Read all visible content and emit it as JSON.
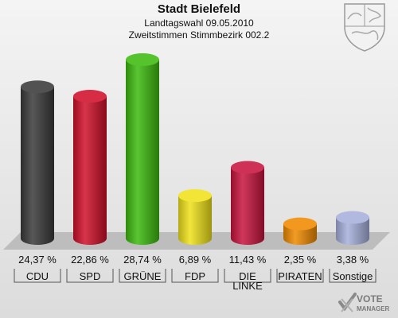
{
  "header": {
    "title": "Stadt Bielefeld",
    "subtitle": "Landtagswahl 09.05.2010",
    "subtitle2": "Zweitstimmen Stimmbezirk 002.2"
  },
  "chart_data": {
    "type": "bar",
    "title": "Stadt Bielefeld",
    "categories": [
      "CDU",
      "SPD",
      "GRÜNE",
      "FDP",
      "DIE LINKE",
      "PIRATEN",
      "Sonstige"
    ],
    "category_lines": [
      [
        "CDU"
      ],
      [
        "SPD"
      ],
      [
        "GRÜNE"
      ],
      [
        "FDP"
      ],
      [
        "DIE",
        "LINKE"
      ],
      [
        "PIRATEN"
      ],
      [
        "Sonstige"
      ]
    ],
    "values": [
      24.37,
      22.86,
      28.74,
      6.89,
      11.43,
      2.35,
      3.38
    ],
    "value_labels": [
      "24,37 %",
      "22,86 %",
      "28,74 %",
      "6,89 %",
      "11,43 %",
      "2,35 %",
      "3,38 %"
    ],
    "colors": [
      "#3a3a3a",
      "#d0102a",
      "#3dbb0f",
      "#f0e21a",
      "#c8143e",
      "#f08a00",
      "#a6b0dc"
    ],
    "ylim": [
      0,
      28.74
    ],
    "grid": false
  },
  "logo": {
    "line1": "VOTE",
    "line2": "MANAGER"
  },
  "icons": {
    "crest": "nrw-coat-of-arms-icon",
    "logo_mark": "vote-manager-check-icon"
  }
}
